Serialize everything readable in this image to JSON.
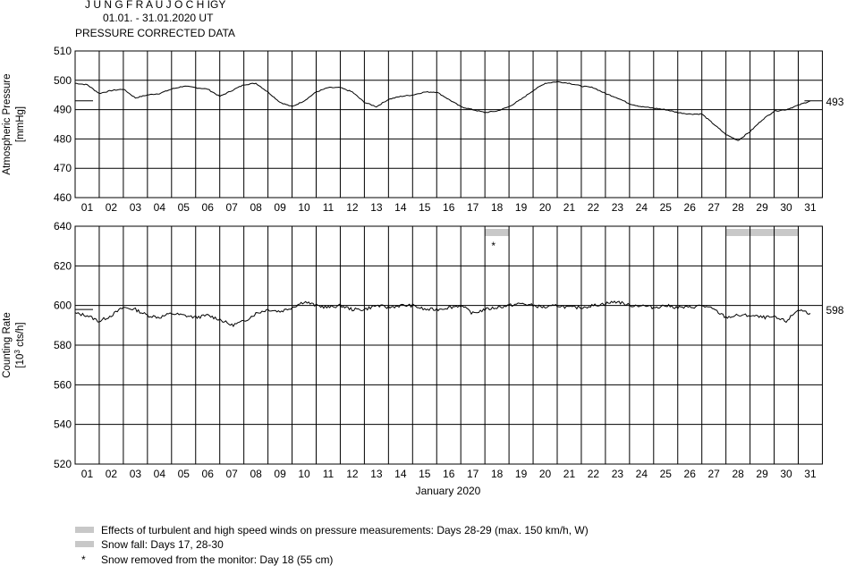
{
  "header": {
    "station": "J U N G F R A U J O C H   IGY",
    "period": "01.01. - 31.01.2020  UT",
    "subtitle": "PRESSURE CORRECTED DATA"
  },
  "chart_data": [
    {
      "type": "line",
      "name": "pressure-panel",
      "ylabel_line1": "Atmospheric Pressure",
      "ylabel_line2": "[mmHg]",
      "ylim": [
        460,
        510
      ],
      "yticks": [
        "460",
        "470",
        "480",
        "490",
        "500",
        "510"
      ],
      "grid": true,
      "reference_value": 493,
      "reference_label": "493",
      "x": [
        1,
        1.5,
        2,
        2.5,
        3,
        3.5,
        4,
        4.5,
        5,
        5.5,
        6,
        6.5,
        7,
        7.5,
        8,
        8.5,
        9,
        9.5,
        10,
        10.5,
        11,
        11.5,
        12,
        12.5,
        13,
        13.5,
        14,
        14.5,
        15,
        15.5,
        16,
        16.5,
        17,
        17.5,
        18,
        18.5,
        19,
        19.5,
        20,
        20.5,
        21,
        21.5,
        22,
        22.5,
        23,
        23.5,
        24,
        24.5,
        25,
        25.5,
        26,
        26.5,
        27,
        27.5,
        28,
        28.5,
        29,
        29.5,
        30,
        30.5,
        31,
        31.5
      ],
      "values": [
        499,
        498.5,
        495.5,
        496.5,
        497,
        494,
        495,
        495.5,
        497,
        498,
        497.5,
        497,
        494.5,
        496.5,
        498.5,
        499,
        496,
        492.5,
        491,
        493,
        496,
        497.5,
        497.5,
        496,
        492.5,
        491,
        493.5,
        494.5,
        495,
        496,
        496,
        493.5,
        491,
        490,
        489,
        489.5,
        491,
        493.5,
        496.5,
        499,
        499.5,
        499,
        498,
        497.5,
        495.5,
        494,
        492,
        491,
        490.5,
        490,
        489,
        488.5,
        488.5,
        485,
        481.5,
        479.5,
        482.5,
        486.5,
        489.5,
        490,
        491.5,
        493
      ]
    },
    {
      "type": "line",
      "name": "counting-rate-panel",
      "ylabel_line1": "Counting Rate",
      "ylabel_line2_pre": "[10",
      "ylabel_line2_sup": "3",
      "ylabel_line2_post": " cts/h]",
      "ylim": [
        520,
        640
      ],
      "yticks": [
        "520",
        "540",
        "560",
        "580",
        "600",
        "620",
        "640"
      ],
      "grid": true,
      "reference_value": 598,
      "reference_label": "598",
      "x": [
        1,
        1.5,
        2,
        2.5,
        3,
        3.5,
        4,
        4.5,
        5,
        5.5,
        6,
        6.5,
        7,
        7.5,
        8,
        8.5,
        9,
        9.5,
        10,
        10.5,
        11,
        11.5,
        12,
        12.5,
        13,
        13.5,
        14,
        14.5,
        15,
        15.5,
        16,
        16.5,
        17,
        17.5,
        18,
        18.5,
        19,
        19.5,
        20,
        20.5,
        21,
        21.5,
        22,
        22.5,
        23,
        23.5,
        24,
        24.5,
        25,
        25.5,
        26,
        26.5,
        27,
        27.5,
        28,
        28.5,
        29,
        29.5,
        30,
        30.5,
        31,
        31.5
      ],
      "values": [
        596,
        595,
        592,
        595,
        599,
        598,
        595,
        594,
        596,
        595,
        594,
        595,
        593,
        590,
        592,
        596,
        598,
        597,
        599,
        602,
        600,
        599,
        600,
        598,
        598,
        600,
        599,
        600,
        600,
        598,
        598,
        599,
        600,
        596,
        598,
        599,
        600,
        601,
        600,
        599,
        600,
        599,
        599,
        600,
        601,
        602,
        600,
        600,
        599,
        600,
        599,
        599,
        600,
        598,
        594,
        595,
        595,
        594,
        594,
        592,
        598,
        596
      ],
      "bars": [
        {
          "from": 17.5,
          "to": 18.5,
          "color": "#c8c8c8"
        },
        {
          "from": 27.5,
          "to": 30.5,
          "color": "#c8c8c8"
        }
      ],
      "star_day": 17.75,
      "star_label": "*"
    }
  ],
  "xaxis": {
    "ticks": [
      "01",
      "02",
      "03",
      "04",
      "05",
      "06",
      "07",
      "08",
      "09",
      "10",
      "11",
      "12",
      "13",
      "14",
      "15",
      "16",
      "17",
      "18",
      "19",
      "20",
      "21",
      "22",
      "23",
      "24",
      "25",
      "26",
      "27",
      "28",
      "29",
      "30",
      "31"
    ],
    "label": "January 2020"
  },
  "legend": {
    "items": [
      {
        "marker": "bar",
        "text": "Effects of turbulent and high speed winds on pressure measurements: Days 28-29 (max. 150 km/h, W)",
        "color": "#c8c8c8"
      },
      {
        "marker": "bar",
        "text": "Snow fall: Days 17, 28-30",
        "color": "#c8c8c8"
      },
      {
        "marker": "star",
        "symbol": "*",
        "text": "Snow removed from the monitor: Day 18 (55 cm)"
      }
    ]
  }
}
